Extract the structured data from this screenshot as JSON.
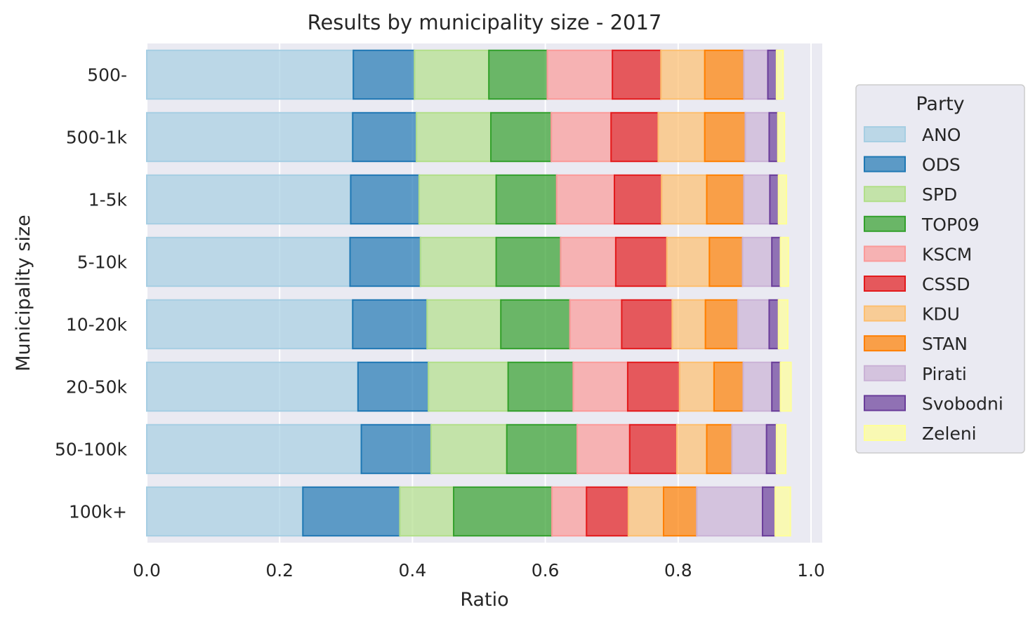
{
  "chart_data": {
    "type": "bar",
    "orientation": "horizontal",
    "stacked": true,
    "title": "Results by municipality size - 2017",
    "xlabel": "Ratio",
    "ylabel": "Municipality size",
    "xlim": [
      0,
      1.02
    ],
    "xticks": [
      "0.0",
      "0.2",
      "0.4",
      "0.6",
      "0.8",
      "1.0"
    ],
    "grid": true,
    "legend": {
      "title": "Party",
      "position": "right"
    },
    "categories": [
      "500-",
      "500-1k",
      "1-5k",
      "5-10k",
      "10-20k",
      "20-50k",
      "50-100k",
      "100k+"
    ],
    "series": [
      {
        "name": "ANO",
        "fill": "#a6cee3",
        "edge": "#a6cee3",
        "values": [
          0.311,
          0.31,
          0.307,
          0.306,
          0.31,
          0.318,
          0.323,
          0.235
        ]
      },
      {
        "name": "ODS",
        "fill": "#1f78b4",
        "edge": "#1f78b4",
        "values": [
          0.092,
          0.096,
          0.103,
          0.106,
          0.112,
          0.106,
          0.105,
          0.146
        ]
      },
      {
        "name": "SPD",
        "fill": "#b2df8a",
        "edge": "#b2df8a",
        "values": [
          0.112,
          0.112,
          0.116,
          0.114,
          0.111,
          0.12,
          0.114,
          0.081
        ]
      },
      {
        "name": "TOP09",
        "fill": "#33a02c",
        "edge": "#33a02c",
        "values": [
          0.088,
          0.091,
          0.091,
          0.097,
          0.104,
          0.098,
          0.106,
          0.148
        ]
      },
      {
        "name": "KSCM",
        "fill": "#fb9a99",
        "edge": "#fb9a99",
        "values": [
          0.098,
          0.09,
          0.087,
          0.083,
          0.078,
          0.082,
          0.079,
          0.052
        ]
      },
      {
        "name": "CSSD",
        "fill": "#e31a1c",
        "edge": "#e31a1c",
        "values": [
          0.073,
          0.071,
          0.071,
          0.077,
          0.076,
          0.078,
          0.071,
          0.063
        ]
      },
      {
        "name": "KDU",
        "fill": "#fdbf6f",
        "edge": "#fdbf6f",
        "values": [
          0.066,
          0.07,
          0.068,
          0.064,
          0.05,
          0.052,
          0.045,
          0.053
        ]
      },
      {
        "name": "STAN",
        "fill": "#ff7f00",
        "edge": "#ff7f00",
        "values": [
          0.059,
          0.061,
          0.056,
          0.05,
          0.049,
          0.044,
          0.038,
          0.05
        ]
      },
      {
        "name": "Pirati",
        "fill": "#cab2d6",
        "edge": "#cab2d6",
        "values": [
          0.036,
          0.036,
          0.039,
          0.044,
          0.047,
          0.043,
          0.052,
          0.099
        ]
      },
      {
        "name": "Svobodni",
        "fill": "#6a3d9a",
        "edge": "#6a3d9a",
        "values": [
          0.013,
          0.013,
          0.013,
          0.013,
          0.014,
          0.013,
          0.015,
          0.019
        ]
      },
      {
        "name": "Zeleni",
        "fill": "#ffff99",
        "edge": "#ffff99",
        "values": [
          0.01,
          0.01,
          0.012,
          0.012,
          0.014,
          0.016,
          0.014,
          0.023
        ]
      }
    ]
  }
}
